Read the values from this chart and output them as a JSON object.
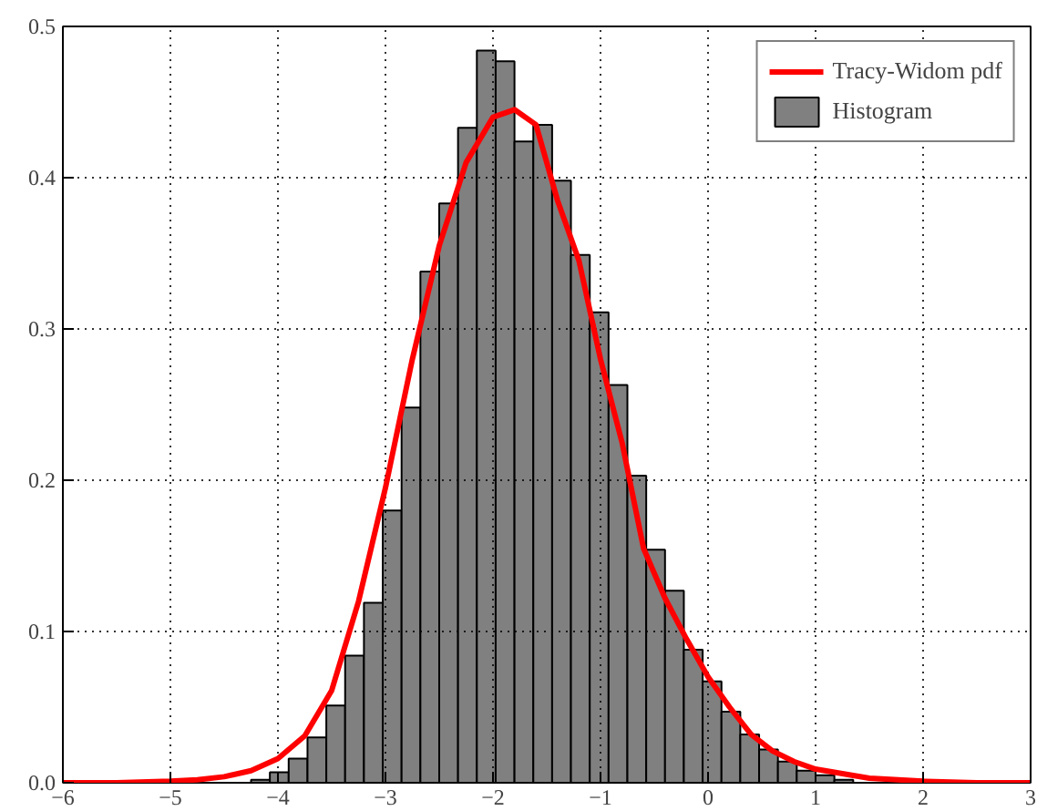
{
  "chart_data": {
    "type": "histogram",
    "series": [
      {
        "type": "line",
        "name": "Tracy-Widom pdf",
        "color": "#ff0000",
        "x": [
          -6,
          -5.5,
          -5,
          -4.75,
          -4.5,
          -4.25,
          -4,
          -3.75,
          -3.5,
          -3.25,
          -3,
          -2.75,
          -2.5,
          -2.25,
          -2,
          -1.8,
          -1.6,
          -1.4,
          -1.2,
          -1,
          -0.8,
          -0.6,
          -0.4,
          -0.2,
          0,
          0.2,
          0.4,
          0.6,
          0.8,
          1,
          1.5,
          2,
          2.5,
          3
        ],
        "values": [
          0,
          0,
          0.001,
          0.002,
          0.004,
          0.008,
          0.016,
          0.031,
          0.061,
          0.12,
          0.195,
          0.28,
          0.355,
          0.41,
          0.44,
          0.445,
          0.435,
          0.385,
          0.345,
          0.28,
          0.225,
          0.155,
          0.122,
          0.095,
          0.07,
          0.05,
          0.032,
          0.021,
          0.014,
          0.009,
          0.003,
          0.001,
          0,
          0
        ]
      },
      {
        "name": "Histogram",
        "color": "#808080",
        "bins": [
          -4.25,
          -4.075,
          -3.9,
          -3.725,
          -3.55,
          -3.375,
          -3.2,
          -3.025,
          -2.85,
          -2.675,
          -2.5,
          -2.325,
          -2.15,
          -1.975,
          -1.8,
          -1.625,
          -1.45,
          -1.275,
          -1.1,
          -0.925,
          -0.75,
          -0.575,
          -0.4,
          -0.225,
          -0.05,
          0.125,
          0.3,
          0.475,
          0.65,
          0.825,
          1.0,
          1.175,
          1.35
        ],
        "values": [
          0.002,
          0.007,
          0.016,
          0.03,
          0.051,
          0.084,
          0.119,
          0.18,
          0.248,
          0.338,
          0.383,
          0.433,
          0.484,
          0.477,
          0.424,
          0.435,
          0.398,
          0.349,
          0.311,
          0.263,
          0.203,
          0.154,
          0.127,
          0.088,
          0.067,
          0.047,
          0.032,
          0.022,
          0.014,
          0.008,
          0.005,
          0.002
        ]
      }
    ],
    "xlim": [
      -6,
      3
    ],
    "ylim": [
      0,
      0.5
    ],
    "xticks": [
      {
        "value": -6,
        "label": "−6"
      },
      {
        "value": -5,
        "label": "−5"
      },
      {
        "value": -4,
        "label": "−4"
      },
      {
        "value": -3,
        "label": "−3"
      },
      {
        "value": -2,
        "label": "−2"
      },
      {
        "value": -1,
        "label": "−1"
      },
      0,
      1,
      2,
      3
    ],
    "yticks": [
      {
        "value": 0,
        "label": "0.0"
      },
      {
        "value": 0.1,
        "label": "0.1"
      },
      {
        "value": 0.2,
        "label": "0.2"
      },
      {
        "value": 0.3,
        "label": "0.3"
      },
      {
        "value": 0.4,
        "label": "0.4"
      },
      {
        "value": 0.5,
        "label": "0.5"
      }
    ],
    "grid": true,
    "legend": "top right",
    "line_style": "solid"
  }
}
